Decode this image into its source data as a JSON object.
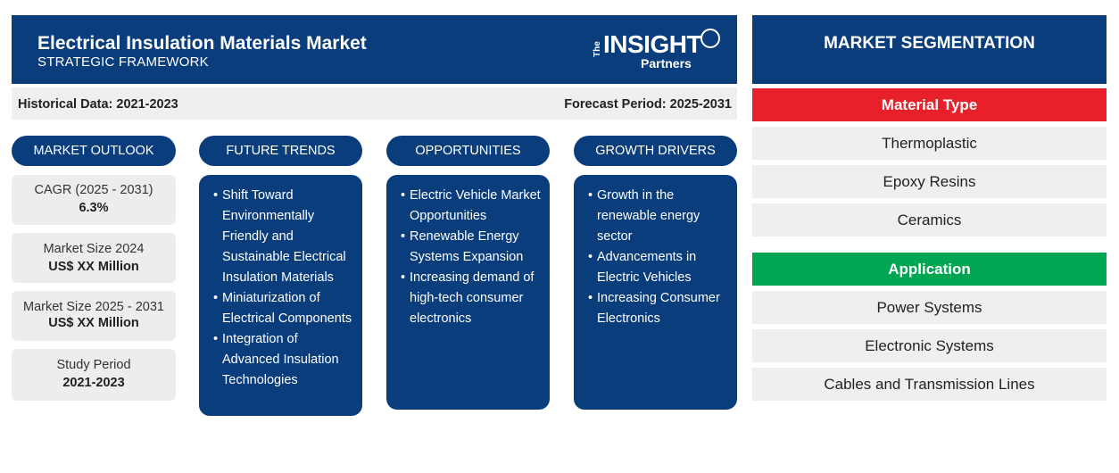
{
  "header": {
    "title": "Electrical Insulation Materials Market",
    "subtitle": "STRATEGIC FRAMEWORK",
    "logo_the": "The",
    "logo_insight": "INSIGHT",
    "logo_partners": "Partners"
  },
  "periods": {
    "historical": "Historical Data: 2021-2023",
    "forecast": "Forecast Period: 2025-2031"
  },
  "columns": {
    "outlook": "MARKET OUTLOOK",
    "trends": "FUTURE TRENDS",
    "opportunities": "OPPORTUNITIES",
    "drivers": "GROWTH DRIVERS"
  },
  "outlook": [
    {
      "label": "CAGR (2025 - 2031)",
      "value": "6.3%"
    },
    {
      "label": "Market Size 2024",
      "value": "US$ XX Million"
    },
    {
      "label": "Market Size 2025 - 2031",
      "value": "US$ XX Million"
    },
    {
      "label": "Study Period",
      "value": "2021-2023"
    }
  ],
  "trends": [
    "Shift Toward Environmentally Friendly and Sustainable Electrical Insulation Materials",
    "Miniaturization of Electrical Components",
    "Integration of Advanced Insulation Technologies"
  ],
  "opportunities": [
    "Electric Vehicle Market Opportunities",
    "Renewable Energy Systems Expansion",
    "Increasing demand of high-tech consumer electronics"
  ],
  "drivers": [
    "Growth in the renewable energy sector",
    "Advancements in Electric Vehicles",
    "Increasing Consumer Electronics"
  ],
  "segmentation": {
    "title": "MARKET SEGMENTATION",
    "categories": [
      {
        "name": "Material Type",
        "color": "#e8202a",
        "items": [
          "Thermoplastic",
          "Epoxy Resins",
          "Ceramics"
        ]
      },
      {
        "name": "Application",
        "color": "#00a651",
        "items": [
          "Power Systems",
          "Electronic Systems",
          "Cables and Transmission Lines"
        ]
      }
    ]
  },
  "colors": {
    "primary": "#0a3d7c",
    "panel": "#efefef"
  }
}
